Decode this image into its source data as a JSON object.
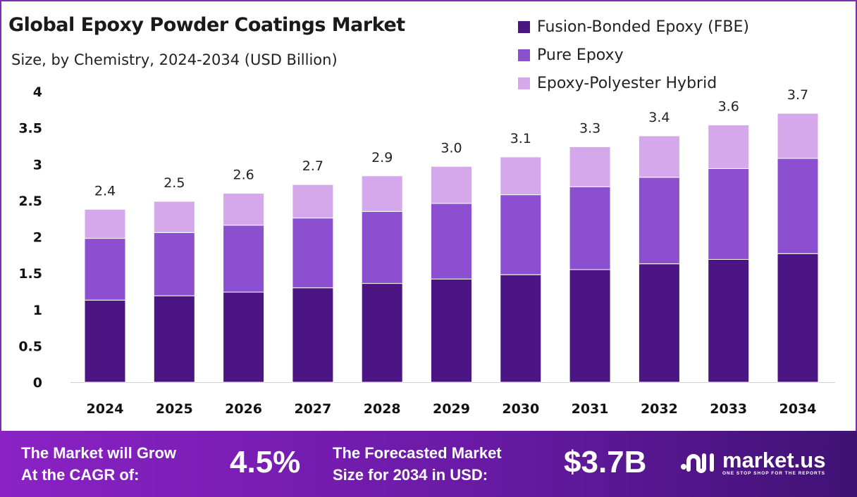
{
  "chart_data": {
    "type": "stacked-bar",
    "title": "Global Epoxy Powder Coatings Market",
    "subtitle": "Size, by Chemistry, 2024-2034 (USD Billion)",
    "categories": [
      "2024",
      "2025",
      "2026",
      "2027",
      "2028",
      "2029",
      "2030",
      "2031",
      "2032",
      "2033",
      "2034"
    ],
    "series": [
      {
        "name": "Fusion-Bonded Epoxy (FBE)",
        "color": "#4b1583",
        "values": [
          1.13,
          1.19,
          1.24,
          1.3,
          1.36,
          1.42,
          1.48,
          1.55,
          1.63,
          1.69,
          1.77
        ]
      },
      {
        "name": "Pure Epoxy",
        "color": "#8b4fcf",
        "values": [
          0.85,
          0.87,
          0.92,
          0.96,
          0.99,
          1.04,
          1.1,
          1.14,
          1.19,
          1.25,
          1.31
        ]
      },
      {
        "name": "Epoxy-Polyester Hybrid",
        "color": "#d4a8ea",
        "values": [
          0.4,
          0.43,
          0.44,
          0.46,
          0.49,
          0.51,
          0.52,
          0.55,
          0.57,
          0.6,
          0.62
        ]
      }
    ],
    "totals_labels": [
      "2.4",
      "2.5",
      "2.6",
      "2.7",
      "2.9",
      "3.0",
      "3.1",
      "3.3",
      "3.4",
      "3.6",
      "3.7"
    ],
    "yticks": [
      "0",
      "0.5",
      "1",
      "1.5",
      "2",
      "2.5",
      "3",
      "3.5",
      "4"
    ],
    "ylim": [
      0,
      4
    ],
    "legend": "top-right",
    "grid": false
  },
  "footer": {
    "cagr_label_1": "The Market will Grow",
    "cagr_label_2": "At the CAGR of:",
    "cagr_value": "4.5%",
    "forecast_label_1": "The Forecasted Market",
    "forecast_label_2": "Size for 2034 in USD:",
    "forecast_value": "$3.7B",
    "logo_name": "market.us",
    "logo_tagline": "ONE STOP SHOP FOR THE REPORTS"
  }
}
